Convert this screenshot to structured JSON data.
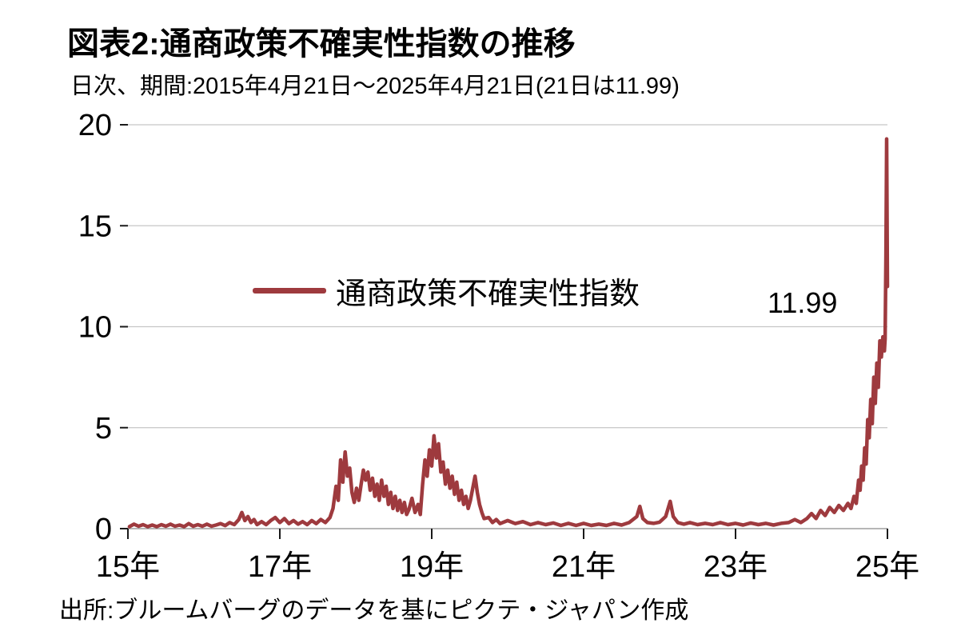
{
  "header": {
    "title": "図表2:通商政策不確実性指数の推移",
    "subtitle": "日次、期間:2015年4月21日〜2025年4月21日(21日は11.99)"
  },
  "legend": {
    "label": "通商政策不確実性指数"
  },
  "annotation": {
    "value": "11.99"
  },
  "footer": {
    "source": "出所:ブルームバーグのデータを基にピクテ・ジャパン作成"
  },
  "colors": {
    "line": "#9e3a3e",
    "grid": "#c6c6c6",
    "axis": "#1a1a1a",
    "baseline": "#8a8a8a",
    "text": "#000000"
  },
  "chart_data": {
    "type": "line",
    "title": "通商政策不確実性指数の推移",
    "xlabel": "",
    "ylabel": "",
    "xlim": [
      15.3,
      25.3
    ],
    "ylim": [
      0,
      20
    ],
    "grid": true,
    "legend_position": "center",
    "last_value": 11.99,
    "peak_value": 19.3,
    "x_ticks": [
      {
        "value": 15.3,
        "label": "15年"
      },
      {
        "value": 17.3,
        "label": "17年"
      },
      {
        "value": 19.3,
        "label": "19年"
      },
      {
        "value": 21.3,
        "label": "21年"
      },
      {
        "value": 23.3,
        "label": "23年"
      },
      {
        "value": 25.3,
        "label": "25年"
      }
    ],
    "y_ticks": [
      {
        "value": 0,
        "label": "0"
      },
      {
        "value": 5,
        "label": "5"
      },
      {
        "value": 10,
        "label": "10"
      },
      {
        "value": 15,
        "label": "15"
      },
      {
        "value": 20,
        "label": "20"
      }
    ],
    "series": [
      {
        "name": "通商政策不確実性指数",
        "color": "#9e3a3e",
        "points": [
          [
            15.32,
            0.1
          ],
          [
            15.38,
            0.22
          ],
          [
            15.44,
            0.12
          ],
          [
            15.5,
            0.2
          ],
          [
            15.56,
            0.1
          ],
          [
            15.62,
            0.18
          ],
          [
            15.68,
            0.1
          ],
          [
            15.74,
            0.2
          ],
          [
            15.8,
            0.12
          ],
          [
            15.86,
            0.22
          ],
          [
            15.92,
            0.12
          ],
          [
            15.98,
            0.18
          ],
          [
            16.04,
            0.1
          ],
          [
            16.1,
            0.25
          ],
          [
            16.16,
            0.12
          ],
          [
            16.22,
            0.2
          ],
          [
            16.28,
            0.12
          ],
          [
            16.34,
            0.22
          ],
          [
            16.4,
            0.12
          ],
          [
            16.46,
            0.18
          ],
          [
            16.52,
            0.25
          ],
          [
            16.58,
            0.15
          ],
          [
            16.64,
            0.3
          ],
          [
            16.7,
            0.2
          ],
          [
            16.76,
            0.45
          ],
          [
            16.8,
            0.8
          ],
          [
            16.84,
            0.4
          ],
          [
            16.88,
            0.6
          ],
          [
            16.92,
            0.3
          ],
          [
            16.96,
            0.45
          ],
          [
            17.0,
            0.2
          ],
          [
            17.06,
            0.35
          ],
          [
            17.12,
            0.2
          ],
          [
            17.18,
            0.4
          ],
          [
            17.24,
            0.55
          ],
          [
            17.3,
            0.3
          ],
          [
            17.36,
            0.5
          ],
          [
            17.42,
            0.25
          ],
          [
            17.48,
            0.4
          ],
          [
            17.54,
            0.22
          ],
          [
            17.6,
            0.35
          ],
          [
            17.66,
            0.2
          ],
          [
            17.72,
            0.4
          ],
          [
            17.78,
            0.25
          ],
          [
            17.84,
            0.45
          ],
          [
            17.9,
            0.3
          ],
          [
            17.96,
            0.55
          ],
          [
            18.0,
            1.0
          ],
          [
            18.04,
            2.1
          ],
          [
            18.07,
            1.4
          ],
          [
            18.1,
            3.4
          ],
          [
            18.13,
            2.3
          ],
          [
            18.16,
            3.8
          ],
          [
            18.19,
            2.6
          ],
          [
            18.22,
            3.0
          ],
          [
            18.25,
            1.8
          ],
          [
            18.28,
            1.3
          ],
          [
            18.31,
            2.0
          ],
          [
            18.34,
            1.4
          ],
          [
            18.37,
            2.2
          ],
          [
            18.4,
            2.9
          ],
          [
            18.43,
            2.4
          ],
          [
            18.46,
            2.8
          ],
          [
            18.49,
            1.9
          ],
          [
            18.52,
            2.5
          ],
          [
            18.55,
            1.6
          ],
          [
            18.58,
            2.2
          ],
          [
            18.61,
            1.4
          ],
          [
            18.64,
            2.4
          ],
          [
            18.67,
            1.6
          ],
          [
            18.7,
            2.1
          ],
          [
            18.73,
            1.2
          ],
          [
            18.76,
            1.8
          ],
          [
            18.79,
            1.0
          ],
          [
            18.82,
            1.6
          ],
          [
            18.85,
            0.9
          ],
          [
            18.88,
            1.4
          ],
          [
            18.91,
            0.8
          ],
          [
            18.94,
            1.3
          ],
          [
            18.97,
            0.7
          ],
          [
            19.0,
            0.95
          ],
          [
            19.04,
            1.5
          ],
          [
            19.08,
            0.8
          ],
          [
            19.12,
            1.2
          ],
          [
            19.15,
            0.7
          ],
          [
            19.18,
            2.2
          ],
          [
            19.21,
            3.4
          ],
          [
            19.24,
            2.6
          ],
          [
            19.27,
            3.9
          ],
          [
            19.3,
            3.1
          ],
          [
            19.33,
            4.6
          ],
          [
            19.36,
            3.5
          ],
          [
            19.39,
            4.2
          ],
          [
            19.42,
            2.8
          ],
          [
            19.45,
            3.3
          ],
          [
            19.48,
            2.2
          ],
          [
            19.51,
            2.9
          ],
          [
            19.54,
            2.0
          ],
          [
            19.57,
            2.6
          ],
          [
            19.6,
            1.7
          ],
          [
            19.63,
            2.3
          ],
          [
            19.66,
            1.4
          ],
          [
            19.69,
            1.9
          ],
          [
            19.72,
            1.2
          ],
          [
            19.75,
            1.6
          ],
          [
            19.78,
            1.0
          ],
          [
            19.81,
            1.4
          ],
          [
            19.84,
            2.0
          ],
          [
            19.87,
            2.6
          ],
          [
            19.9,
            1.8
          ],
          [
            19.93,
            1.2
          ],
          [
            19.96,
            0.8
          ],
          [
            19.99,
            0.5
          ],
          [
            20.05,
            0.55
          ],
          [
            20.1,
            0.3
          ],
          [
            20.15,
            0.45
          ],
          [
            20.2,
            0.25
          ],
          [
            20.3,
            0.4
          ],
          [
            20.4,
            0.25
          ],
          [
            20.5,
            0.35
          ],
          [
            20.6,
            0.2
          ],
          [
            20.7,
            0.3
          ],
          [
            20.8,
            0.2
          ],
          [
            20.9,
            0.28
          ],
          [
            21.0,
            0.16
          ],
          [
            21.1,
            0.26
          ],
          [
            21.2,
            0.16
          ],
          [
            21.3,
            0.26
          ],
          [
            21.4,
            0.16
          ],
          [
            21.5,
            0.22
          ],
          [
            21.6,
            0.16
          ],
          [
            21.7,
            0.26
          ],
          [
            21.8,
            0.18
          ],
          [
            21.9,
            0.3
          ],
          [
            22.0,
            0.6
          ],
          [
            22.04,
            1.1
          ],
          [
            22.08,
            0.5
          ],
          [
            22.14,
            0.3
          ],
          [
            22.22,
            0.26
          ],
          [
            22.3,
            0.32
          ],
          [
            22.38,
            0.6
          ],
          [
            22.44,
            1.35
          ],
          [
            22.48,
            0.6
          ],
          [
            22.54,
            0.3
          ],
          [
            22.62,
            0.22
          ],
          [
            22.7,
            0.3
          ],
          [
            22.8,
            0.2
          ],
          [
            22.9,
            0.26
          ],
          [
            23.0,
            0.2
          ],
          [
            23.1,
            0.3
          ],
          [
            23.2,
            0.2
          ],
          [
            23.3,
            0.26
          ],
          [
            23.4,
            0.18
          ],
          [
            23.5,
            0.28
          ],
          [
            23.6,
            0.2
          ],
          [
            23.7,
            0.26
          ],
          [
            23.8,
            0.18
          ],
          [
            23.9,
            0.26
          ],
          [
            24.0,
            0.3
          ],
          [
            24.08,
            0.45
          ],
          [
            24.16,
            0.3
          ],
          [
            24.24,
            0.5
          ],
          [
            24.3,
            0.75
          ],
          [
            24.36,
            0.5
          ],
          [
            24.42,
            0.9
          ],
          [
            24.48,
            0.65
          ],
          [
            24.54,
            1.05
          ],
          [
            24.6,
            0.8
          ],
          [
            24.66,
            1.15
          ],
          [
            24.72,
            0.9
          ],
          [
            24.78,
            1.25
          ],
          [
            24.82,
            1.0
          ],
          [
            24.86,
            1.6
          ],
          [
            24.89,
            1.25
          ],
          [
            24.92,
            2.4
          ],
          [
            24.94,
            1.9
          ],
          [
            24.96,
            3.1
          ],
          [
            24.98,
            2.4
          ],
          [
            25.0,
            4.0
          ],
          [
            25.02,
            3.2
          ],
          [
            25.04,
            5.4
          ],
          [
            25.06,
            4.5
          ],
          [
            25.08,
            6.4
          ],
          [
            25.1,
            5.2
          ],
          [
            25.12,
            7.5
          ],
          [
            25.14,
            6.2
          ],
          [
            25.16,
            8.2
          ],
          [
            25.18,
            7.0
          ],
          [
            25.2,
            9.3
          ],
          [
            25.22,
            8.5
          ],
          [
            25.24,
            9.5
          ],
          [
            25.26,
            8.8
          ],
          [
            25.27,
            9.4
          ],
          [
            25.28,
            13.5
          ],
          [
            25.29,
            19.3
          ],
          [
            25.3,
            11.99
          ]
        ]
      }
    ]
  }
}
